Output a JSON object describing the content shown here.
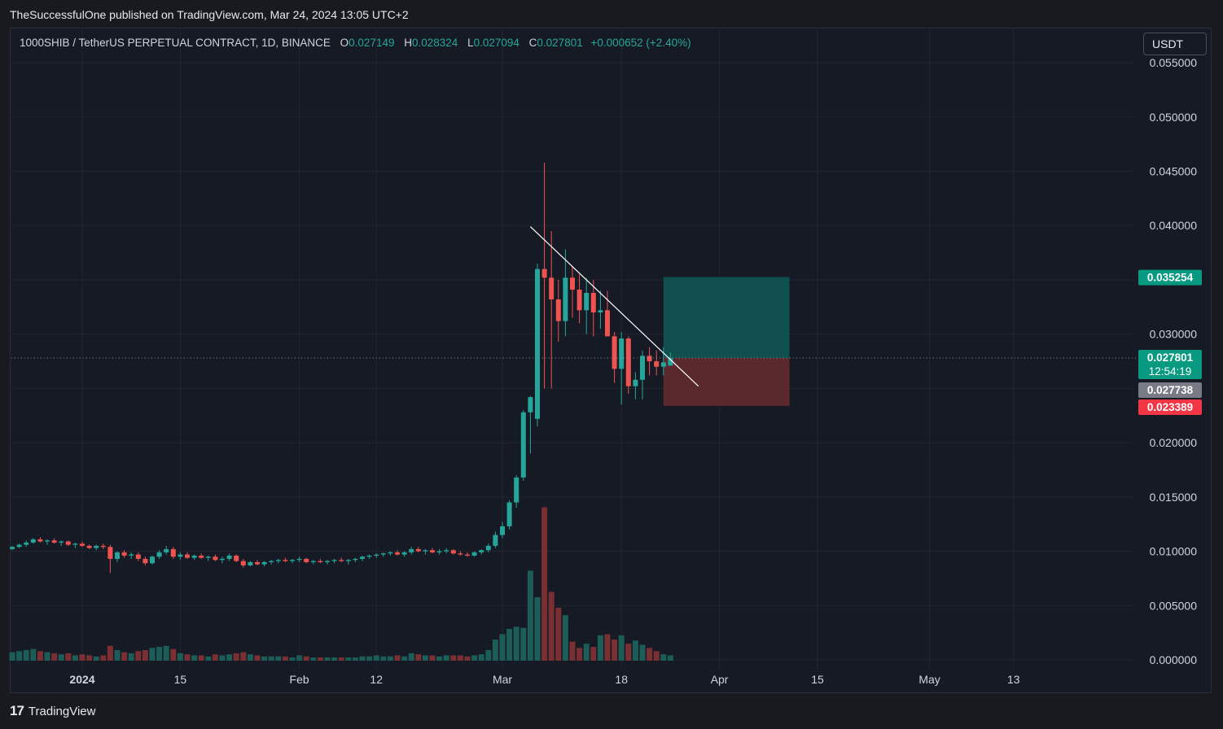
{
  "header": {
    "published_by": "TheSuccessfulOne published on TradingView.com, Mar 24, 2024 13:05 UTC+2"
  },
  "legend": {
    "symbol": "1000SHIB / TetherUS PERPETUAL CONTRACT, 1D, BINANCE",
    "o_label": "O",
    "o_value": "0.027149",
    "h_label": "H",
    "h_value": "0.028324",
    "l_label": "L",
    "l_value": "0.027094",
    "c_label": "C",
    "c_value": "0.027801",
    "change": "+0.000652 (+2.40%)"
  },
  "currency": "USDT",
  "footer": {
    "brand": "TradingView",
    "logo": "17"
  },
  "colors": {
    "up": "#26a69a",
    "down": "#ef5350",
    "profit_zone": "#0f5350",
    "loss_zone": "#5d2a2e",
    "background": "#161a25"
  },
  "chart_data": {
    "type": "candlestick",
    "y_axis": {
      "ticks": [
        "0.055000",
        "0.050000",
        "0.045000",
        "0.040000",
        "0.030000",
        "0.020000",
        "0.015000",
        "0.010000",
        "0.005000",
        "0.000000"
      ],
      "range": [
        0,
        0.055
      ]
    },
    "x_axis": {
      "ticks": [
        {
          "label": "2024",
          "date": "2024-01-01",
          "bold": true
        },
        {
          "label": "15",
          "date": "2024-01-15"
        },
        {
          "label": "Feb",
          "date": "2024-02-01"
        },
        {
          "label": "12",
          "date": "2024-02-12"
        },
        {
          "label": "Mar",
          "date": "2024-03-01"
        },
        {
          "label": "18",
          "date": "2024-03-18"
        },
        {
          "label": "Apr",
          "date": "2024-04-01"
        },
        {
          "label": "15",
          "date": "2024-04-15"
        },
        {
          "label": "May",
          "date": "2024-05-01"
        },
        {
          "label": "13",
          "date": "2024-05-13"
        }
      ]
    },
    "start_date": "2023-12-22",
    "candles": [
      [
        0.0102,
        0.0105,
        0.0101,
        0.0104,
        0.8
      ],
      [
        0.0104,
        0.0107,
        0.0103,
        0.0106,
        0.9
      ],
      [
        0.0106,
        0.011,
        0.0104,
        0.0108,
        1.0
      ],
      [
        0.0108,
        0.0112,
        0.0107,
        0.0111,
        1.1
      ],
      [
        0.0111,
        0.0113,
        0.0108,
        0.0109,
        0.9
      ],
      [
        0.0109,
        0.0111,
        0.0106,
        0.011,
        0.8
      ],
      [
        0.011,
        0.0112,
        0.0107,
        0.0108,
        0.7
      ],
      [
        0.0108,
        0.011,
        0.0105,
        0.0109,
        0.6
      ],
      [
        0.0109,
        0.011,
        0.0105,
        0.0106,
        0.7
      ],
      [
        0.0106,
        0.0108,
        0.0103,
        0.0107,
        0.5
      ],
      [
        0.0107,
        0.0109,
        0.0104,
        0.0105,
        0.6
      ],
      [
        0.0105,
        0.0106,
        0.0102,
        0.0103,
        0.5
      ],
      [
        0.0103,
        0.0106,
        0.0101,
        0.0105,
        0.4
      ],
      [
        0.0105,
        0.0107,
        0.0102,
        0.0104,
        0.5
      ],
      [
        0.0104,
        0.0106,
        0.008,
        0.0093,
        1.4
      ],
      [
        0.0093,
        0.01,
        0.009,
        0.0099,
        1.0
      ],
      [
        0.0099,
        0.0101,
        0.0094,
        0.0096,
        0.8
      ],
      [
        0.0096,
        0.0099,
        0.0093,
        0.0097,
        0.7
      ],
      [
        0.0097,
        0.0099,
        0.0091,
        0.0093,
        0.9
      ],
      [
        0.0093,
        0.0095,
        0.0087,
        0.0089,
        1.0
      ],
      [
        0.0089,
        0.0096,
        0.0088,
        0.0095,
        1.2
      ],
      [
        0.0095,
        0.0101,
        0.0093,
        0.0099,
        1.3
      ],
      [
        0.0099,
        0.0105,
        0.0097,
        0.0102,
        1.4
      ],
      [
        0.0102,
        0.0104,
        0.0093,
        0.0095,
        1.1
      ],
      [
        0.0095,
        0.0099,
        0.0092,
        0.0097,
        0.7
      ],
      [
        0.0097,
        0.0099,
        0.0093,
        0.0094,
        0.6
      ],
      [
        0.0094,
        0.0097,
        0.0092,
        0.0096,
        0.5
      ],
      [
        0.0096,
        0.0098,
        0.0093,
        0.0094,
        0.5
      ],
      [
        0.0094,
        0.0096,
        0.0091,
        0.0095,
        0.4
      ],
      [
        0.0095,
        0.0097,
        0.0091,
        0.0092,
        0.6
      ],
      [
        0.0092,
        0.0095,
        0.0089,
        0.0093,
        0.5
      ],
      [
        0.0093,
        0.0098,
        0.0091,
        0.0096,
        0.6
      ],
      [
        0.0096,
        0.0097,
        0.009,
        0.0091,
        0.7
      ],
      [
        0.0091,
        0.0093,
        0.0085,
        0.0087,
        0.8
      ],
      [
        0.0087,
        0.0091,
        0.0086,
        0.009,
        0.6
      ],
      [
        0.009,
        0.0092,
        0.0087,
        0.0088,
        0.5
      ],
      [
        0.0088,
        0.0091,
        0.0086,
        0.009,
        0.4
      ],
      [
        0.009,
        0.0092,
        0.0088,
        0.0091,
        0.4
      ],
      [
        0.0091,
        0.0093,
        0.0089,
        0.0092,
        0.4
      ],
      [
        0.0092,
        0.0094,
        0.009,
        0.0091,
        0.4
      ],
      [
        0.0091,
        0.0093,
        0.0089,
        0.0092,
        0.3
      ],
      [
        0.0092,
        0.0095,
        0.009,
        0.0093,
        0.5
      ],
      [
        0.0093,
        0.0094,
        0.0089,
        0.009,
        0.4
      ],
      [
        0.009,
        0.0092,
        0.0088,
        0.0091,
        0.3
      ],
      [
        0.0091,
        0.0093,
        0.0089,
        0.009,
        0.3
      ],
      [
        0.009,
        0.0092,
        0.0088,
        0.0091,
        0.3
      ],
      [
        0.0091,
        0.0093,
        0.0089,
        0.0092,
        0.3
      ],
      [
        0.0092,
        0.0094,
        0.009,
        0.0091,
        0.3
      ],
      [
        0.0091,
        0.0093,
        0.0088,
        0.0092,
        0.3
      ],
      [
        0.0092,
        0.0094,
        0.009,
        0.0093,
        0.3
      ],
      [
        0.0093,
        0.0096,
        0.0091,
        0.0095,
        0.4
      ],
      [
        0.0095,
        0.0097,
        0.0093,
        0.0096,
        0.4
      ],
      [
        0.0096,
        0.0098,
        0.0094,
        0.0097,
        0.5
      ],
      [
        0.0097,
        0.0099,
        0.0095,
        0.0098,
        0.4
      ],
      [
        0.0098,
        0.01,
        0.0096,
        0.0099,
        0.4
      ],
      [
        0.0099,
        0.0101,
        0.0096,
        0.0097,
        0.5
      ],
      [
        0.0097,
        0.01,
        0.0095,
        0.0099,
        0.4
      ],
      [
        0.0099,
        0.0104,
        0.0097,
        0.0102,
        0.7
      ],
      [
        0.0102,
        0.0104,
        0.0099,
        0.01,
        0.6
      ],
      [
        0.01,
        0.0102,
        0.0097,
        0.0101,
        0.5
      ],
      [
        0.0101,
        0.0103,
        0.0098,
        0.0099,
        0.5
      ],
      [
        0.0099,
        0.0102,
        0.0097,
        0.01,
        0.4
      ],
      [
        0.01,
        0.0103,
        0.0098,
        0.0101,
        0.5
      ],
      [
        0.0101,
        0.0102,
        0.0097,
        0.0098,
        0.5
      ],
      [
        0.0098,
        0.01,
        0.0096,
        0.0097,
        0.5
      ],
      [
        0.0097,
        0.0099,
        0.0095,
        0.0096,
        0.4
      ],
      [
        0.0096,
        0.01,
        0.0095,
        0.0099,
        0.5
      ],
      [
        0.0099,
        0.0102,
        0.0097,
        0.0101,
        0.6
      ],
      [
        0.0101,
        0.0107,
        0.0099,
        0.0105,
        1.0
      ],
      [
        0.0105,
        0.0118,
        0.0103,
        0.0115,
        2.0
      ],
      [
        0.0115,
        0.0127,
        0.0112,
        0.0123,
        2.5
      ],
      [
        0.0123,
        0.0147,
        0.012,
        0.0145,
        3.0
      ],
      [
        0.0145,
        0.017,
        0.014,
        0.0168,
        3.2
      ],
      [
        0.0168,
        0.023,
        0.0165,
        0.0228,
        3.1
      ],
      [
        0.0228,
        0.0243,
        0.019,
        0.0242,
        8.5
      ],
      [
        0.0222,
        0.0365,
        0.0215,
        0.036,
        6.0
      ],
      [
        0.036,
        0.0458,
        0.025,
        0.0352,
        14.5
      ],
      [
        0.0352,
        0.0395,
        0.025,
        0.0332,
        6.5
      ],
      [
        0.0332,
        0.035,
        0.0293,
        0.0312,
        5.0
      ],
      [
        0.0312,
        0.0378,
        0.0298,
        0.0352,
        4.3
      ],
      [
        0.0352,
        0.0362,
        0.0315,
        0.0341,
        1.8
      ],
      [
        0.0341,
        0.0355,
        0.031,
        0.0322,
        1.2
      ],
      [
        0.0322,
        0.0352,
        0.03,
        0.0338,
        1.6
      ],
      [
        0.0338,
        0.035,
        0.0298,
        0.032,
        1.3
      ],
      [
        0.032,
        0.034,
        0.0305,
        0.0322,
        2.4
      ],
      [
        0.0322,
        0.034,
        0.0298,
        0.0298,
        2.5
      ],
      [
        0.0298,
        0.0302,
        0.0255,
        0.0268,
        2.0
      ],
      [
        0.0268,
        0.0302,
        0.0235,
        0.0296,
        2.4
      ],
      [
        0.0296,
        0.0298,
        0.0245,
        0.0252,
        1.6
      ],
      [
        0.0252,
        0.0265,
        0.024,
        0.0258,
        1.9
      ],
      [
        0.0258,
        0.0285,
        0.024,
        0.028,
        1.5
      ],
      [
        0.028,
        0.0288,
        0.0262,
        0.0275,
        1.2
      ],
      [
        0.0275,
        0.0285,
        0.0262,
        0.027,
        0.9
      ],
      [
        0.027,
        0.0288,
        0.0262,
        0.0274,
        0.6
      ],
      [
        0.0271,
        0.0283,
        0.0271,
        0.0278,
        0.5
      ]
    ],
    "volume_axis": "overlay",
    "trendline": {
      "from": {
        "date": "2024-03-05",
        "price": 0.0399
      },
      "to": {
        "date": "2024-03-29",
        "price": 0.0252
      },
      "color": "#ffffff"
    },
    "position": {
      "type": "long",
      "entry": 0.027801,
      "target": 0.035254,
      "stop": 0.023389,
      "start_date": "2024-03-24",
      "end_date": "2024-04-11"
    },
    "price_labels": [
      {
        "text": "0.035254",
        "price": 0.035254,
        "color": "#089981"
      },
      {
        "text": "0.027801",
        "price": 0.027801,
        "color": "#089981",
        "sub": "12:54:19"
      },
      {
        "text": "0.027738",
        "price": 0.027738,
        "color": "#787b86"
      },
      {
        "text": "0.023389",
        "price": 0.023389,
        "color": "#f23645"
      }
    ],
    "last_price_line": 0.027801
  }
}
